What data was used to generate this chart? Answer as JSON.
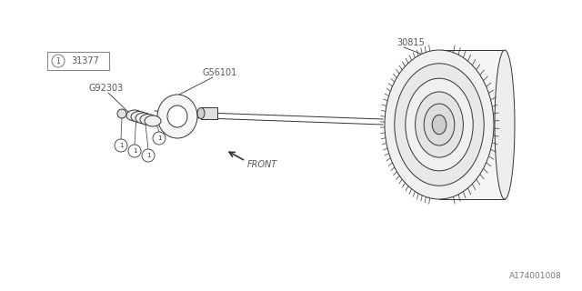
{
  "bg_color": "#ffffff",
  "line_color": "#333333",
  "fig_width": 6.4,
  "fig_height": 3.2,
  "dpi": 100,
  "part_number_box": "31377",
  "part_label_icon": "1",
  "label_30815": "30815",
  "label_G56101": "G56101",
  "label_G92303": "G92303",
  "label_FRONT": "FRONT",
  "watermark": "A174001008"
}
